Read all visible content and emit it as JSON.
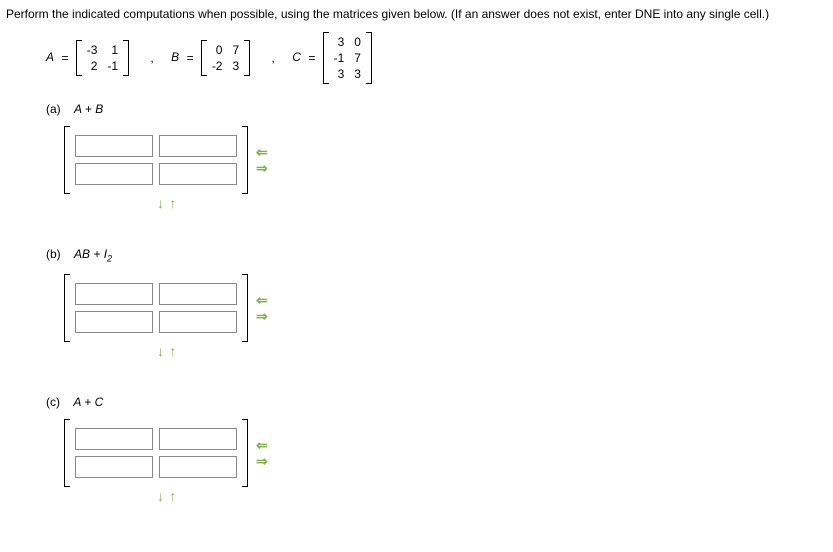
{
  "instructions": "Perform the indicated computations when possible, using the matrices given below. (If an answer does not exist, enter DNE into any single cell.)",
  "matrices": {
    "A": {
      "label": "A",
      "rows": [
        [
          "-3",
          "1"
        ],
        [
          "2",
          "-1"
        ]
      ]
    },
    "B": {
      "label": "B",
      "rows": [
        [
          "0",
          "7"
        ],
        [
          "-2",
          "3"
        ]
      ]
    },
    "C": {
      "label": "C",
      "rows": [
        [
          "3",
          "0"
        ],
        [
          "-1",
          "7"
        ],
        [
          "3",
          "3"
        ]
      ]
    }
  },
  "parts": {
    "a": {
      "label": "(a)",
      "expr_prefix": "A + B",
      "expr_html": "A + B"
    },
    "b": {
      "label": "(b)",
      "expr_prefix": "AB + I",
      "sub": "2"
    },
    "c": {
      "label": "(c)",
      "expr_prefix": "A + C"
    }
  },
  "icons": {
    "arrow_left": "⇐",
    "arrow_right": "⇒",
    "arrow_down": "↓",
    "arrow_up": "↑"
  },
  "style": {
    "arrow_color": "#7cb342",
    "input_width": 72
  }
}
